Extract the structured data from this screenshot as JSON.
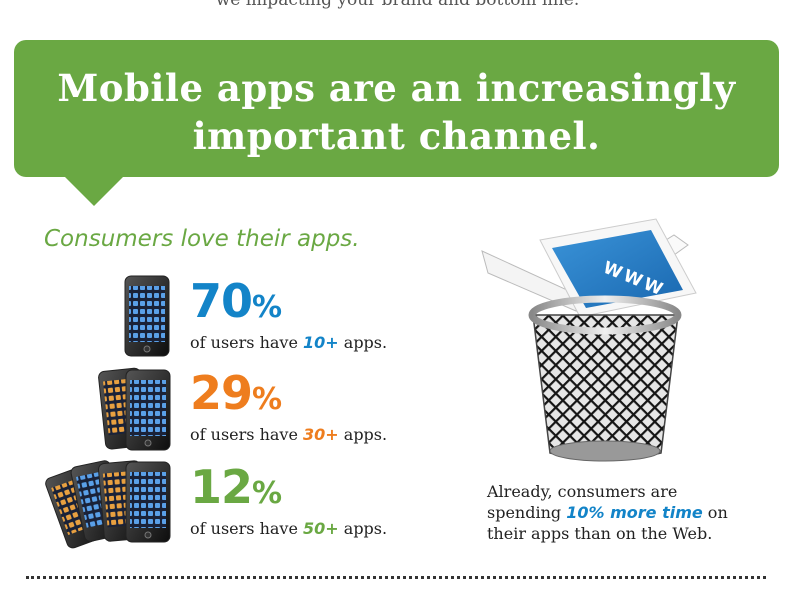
{
  "top_text": "we impacting your brand and bottom line.",
  "banner": {
    "title_line1": "Mobile apps are an increasingly",
    "title_line2": "important channel."
  },
  "subtitle": "Consumers love their apps.",
  "stats": [
    {
      "value": "70",
      "unit": "%",
      "desc_pre": "of users have ",
      "highlight": "10+",
      "desc_post": " apps.",
      "color": "#1384c8"
    },
    {
      "value": "29",
      "unit": "%",
      "desc_pre": "of users have ",
      "highlight": "30+",
      "desc_post": " apps.",
      "color": "#ee7d1e"
    },
    {
      "value": "12",
      "unit": "%",
      "desc_pre": "of users have ",
      "highlight": "50+",
      "desc_post": " apps.",
      "color": "#6aa843"
    }
  ],
  "trash_laptop": {
    "screen_text": "WWW"
  },
  "caption": {
    "line1": "Already, consumers are",
    "line2_pre": "spending ",
    "line2_em": "10% more time",
    "line2_post": " on",
    "line3": "their apps than on the Web."
  },
  "colors": {
    "green": "#6aa843",
    "blue": "#1384c8",
    "orange": "#ee7d1e"
  }
}
